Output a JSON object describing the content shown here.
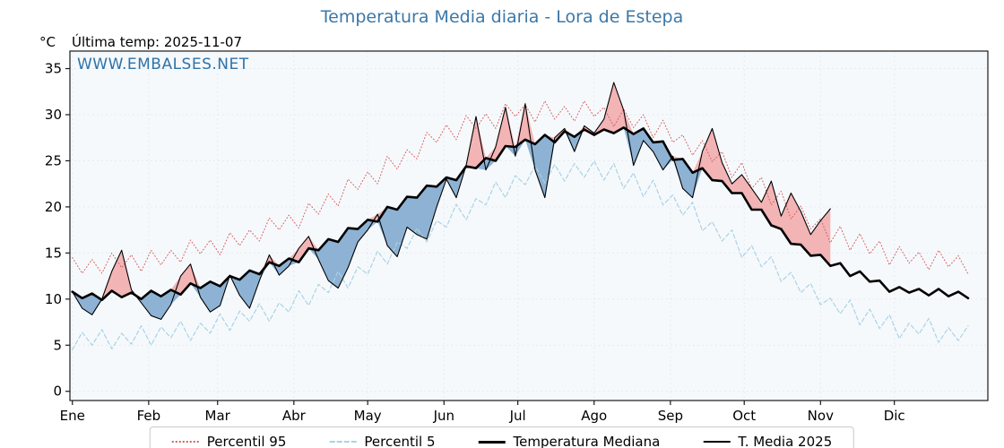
{
  "header": {
    "title": "Temperatura Media diaria - Lora de Estepa",
    "unit": "°C",
    "last_temp": "Última temp: 2025-11-07",
    "watermark": "WWW.EMBALSES.NET"
  },
  "colors": {
    "accent_blue": "#3c78a8",
    "watermark_blue": "#2f72a8",
    "p95_red": "#d65f5f",
    "p5_blue": "#a9d3e5",
    "median_black": "#000000",
    "t2025_black": "#000000",
    "fill_above": "#f2a8a8",
    "fill_below": "#7aa6cc",
    "plot_bg": "#f6f9fc",
    "grid": "#e3ebf2",
    "spine": "#1a1a1a"
  },
  "legend": {
    "items": [
      {
        "label": "Percentil 95"
      },
      {
        "label": "Percentil 5"
      },
      {
        "label": "Temperatura Mediana"
      },
      {
        "label": "T. Media 2025"
      }
    ]
  },
  "chart_data": {
    "type": "line",
    "title": "Temperatura Media diaria - Lora de Estepa",
    "xlabel": "",
    "ylabel": "°C",
    "xlim": [
      0,
      373
    ],
    "ylim": [
      -1.0,
      36.9
    ],
    "grid": true,
    "legend_position": "bottom-center",
    "y_ticks": [
      0,
      5,
      10,
      15,
      20,
      25,
      30,
      35
    ],
    "x_months": [
      {
        "label": "Ene",
        "day": 1
      },
      {
        "label": "Feb",
        "day": 32
      },
      {
        "label": "Mar",
        "day": 60
      },
      {
        "label": "Abr",
        "day": 91
      },
      {
        "label": "May",
        "day": 121
      },
      {
        "label": "Jun",
        "day": 152
      },
      {
        "label": "Jul",
        "day": 182
      },
      {
        "label": "Ago",
        "day": 213
      },
      {
        "label": "Sep",
        "day": 244
      },
      {
        "label": "Oct",
        "day": 274
      },
      {
        "label": "Nov",
        "day": 305
      },
      {
        "label": "Dic",
        "day": 335
      }
    ],
    "days": [
      1,
      5,
      9,
      13,
      17,
      21,
      25,
      29,
      33,
      37,
      41,
      45,
      49,
      53,
      57,
      61,
      65,
      69,
      73,
      77,
      81,
      85,
      89,
      93,
      97,
      101,
      105,
      109,
      113,
      117,
      121,
      125,
      129,
      133,
      137,
      141,
      145,
      149,
      153,
      157,
      161,
      165,
      169,
      173,
      177,
      181,
      185,
      189,
      193,
      197,
      201,
      205,
      209,
      213,
      217,
      221,
      225,
      229,
      233,
      237,
      241,
      245,
      249,
      253,
      257,
      261,
      265,
      269,
      273,
      277,
      281,
      285,
      289,
      293,
      297,
      301,
      305,
      309,
      313,
      317,
      321,
      325,
      329,
      333,
      337,
      341,
      345,
      349,
      353,
      357,
      361,
      365
    ],
    "days_2025": [
      1,
      5,
      9,
      13,
      17,
      21,
      25,
      29,
      33,
      37,
      41,
      45,
      49,
      53,
      57,
      61,
      65,
      69,
      73,
      77,
      81,
      85,
      89,
      93,
      97,
      101,
      105,
      109,
      113,
      117,
      121,
      125,
      129,
      133,
      137,
      141,
      145,
      149,
      153,
      157,
      161,
      165,
      169,
      173,
      177,
      181,
      185,
      189,
      193,
      197,
      201,
      205,
      209,
      213,
      217,
      221,
      225,
      229,
      233,
      237,
      241,
      245,
      249,
      253,
      257,
      261,
      265,
      269,
      273,
      277,
      281,
      285,
      289,
      293,
      297,
      301,
      305,
      309
    ],
    "series": [
      {
        "name": "Percentil 95",
        "style": "dotted",
        "color": "#d65f5f",
        "width": 1.0,
        "days_key": "days",
        "values": [
          14.5,
          12.8,
          14.3,
          12.8,
          15.0,
          13.4,
          14.8,
          13.0,
          15.3,
          13.7,
          15.3,
          14.0,
          16.4,
          14.9,
          16.4,
          14.8,
          17.2,
          15.8,
          17.5,
          16.3,
          18.8,
          17.5,
          19.1,
          17.7,
          20.4,
          19.2,
          21.4,
          20.1,
          23.0,
          21.9,
          23.8,
          22.5,
          25.5,
          24.1,
          26.2,
          25.2,
          28.1,
          27.0,
          28.9,
          27.3,
          29.9,
          28.5,
          30.1,
          28.5,
          31.2,
          29.8,
          31.1,
          29.2,
          31.5,
          29.5,
          30.9,
          29.3,
          31.5,
          29.8,
          30.8,
          28.7,
          30.6,
          28.6,
          30.0,
          27.5,
          29.4,
          27.0,
          27.8,
          25.6,
          27.2,
          24.9,
          26.0,
          23.2,
          24.8,
          22.0,
          23.2,
          20.2,
          21.7,
          18.7,
          20.1,
          17.6,
          18.7,
          16.1,
          17.9,
          15.3,
          17.1,
          14.9,
          16.3,
          13.7,
          15.7,
          13.9,
          15.1,
          13.2,
          15.3,
          13.5,
          14.7,
          12.7
        ]
      },
      {
        "name": "Percentil 5",
        "style": "dashed",
        "color": "#a9d3e5",
        "width": 1.2,
        "days_key": "days",
        "values": [
          4.5,
          6.4,
          5.0,
          6.7,
          4.6,
          6.3,
          5.1,
          7.1,
          5.0,
          7.0,
          5.8,
          7.6,
          5.5,
          7.4,
          6.3,
          8.4,
          6.6,
          8.7,
          7.6,
          9.5,
          7.6,
          9.6,
          8.6,
          10.9,
          9.3,
          11.6,
          10.7,
          13.0,
          11.2,
          13.5,
          12.7,
          15.2,
          13.8,
          16.2,
          15.5,
          17.7,
          16.2,
          18.5,
          17.8,
          20.3,
          18.6,
          20.9,
          20.2,
          22.7,
          21.0,
          23.4,
          22.4,
          24.5,
          22.6,
          24.6,
          22.8,
          24.7,
          23.2,
          25.0,
          22.9,
          24.7,
          22.0,
          23.7,
          21.1,
          22.9,
          20.2,
          21.3,
          19.1,
          20.5,
          17.4,
          18.4,
          16.3,
          17.5,
          14.5,
          15.8,
          13.5,
          14.6,
          11.9,
          12.9,
          10.7,
          11.7,
          9.4,
          10.1,
          8.4,
          9.9,
          7.2,
          8.9,
          6.8,
          8.3,
          5.7,
          7.4,
          6.2,
          7.9,
          5.3,
          6.9,
          5.5,
          7.1
        ]
      },
      {
        "name": "Temperatura Mediana",
        "style": "solid",
        "color": "#000000",
        "width": 2.6,
        "days_key": "days",
        "values": [
          10.8,
          10.1,
          10.6,
          9.9,
          10.9,
          10.2,
          10.7,
          10.0,
          10.9,
          10.3,
          11.0,
          10.5,
          11.7,
          11.2,
          11.9,
          11.4,
          12.5,
          12.1,
          13.1,
          12.7,
          14.0,
          13.6,
          14.4,
          14.0,
          15.5,
          15.3,
          16.5,
          16.2,
          17.7,
          17.6,
          18.6,
          18.4,
          20.0,
          19.7,
          21.1,
          21.0,
          22.3,
          22.2,
          23.2,
          22.9,
          24.4,
          24.2,
          25.3,
          25.0,
          26.6,
          26.5,
          27.3,
          26.8,
          27.8,
          27.0,
          28.2,
          27.6,
          28.4,
          27.8,
          28.4,
          28.0,
          28.6,
          27.9,
          28.5,
          27.0,
          27.1,
          25.1,
          25.2,
          23.7,
          24.2,
          22.9,
          22.8,
          21.5,
          21.5,
          19.7,
          19.7,
          18.0,
          17.6,
          16.0,
          15.9,
          14.7,
          14.8,
          13.6,
          13.9,
          12.5,
          13.0,
          11.9,
          12.0,
          10.8,
          11.3,
          10.7,
          11.1,
          10.4,
          11.1,
          10.3,
          10.8,
          10.1
        ]
      },
      {
        "name": "T. Media 2025",
        "style": "solid",
        "color": "#000000",
        "width": 1.1,
        "days_key": "days_2025",
        "values": [
          10.8,
          9.0,
          8.3,
          10.0,
          13.0,
          15.3,
          11.0,
          9.6,
          8.2,
          7.8,
          9.4,
          12.5,
          13.8,
          10.2,
          8.6,
          9.3,
          12.6,
          10.4,
          9.0,
          12.0,
          14.8,
          12.6,
          13.6,
          15.5,
          16.8,
          14.3,
          12.0,
          11.2,
          13.4,
          16.2,
          17.5,
          19.2,
          15.8,
          14.6,
          17.8,
          17.0,
          16.5,
          20.0,
          23.0,
          21.0,
          24.5,
          29.8,
          24.0,
          26.5,
          30.8,
          25.5,
          31.2,
          24.0,
          21.0,
          27.5,
          28.5,
          26.0,
          28.8,
          28.0,
          29.5,
          33.5,
          30.5,
          24.5,
          27.2,
          26.0,
          24.0,
          25.5,
          22.0,
          21.0,
          26.0,
          28.5,
          24.8,
          22.5,
          23.5,
          22.0,
          20.5,
          22.8,
          19.0,
          21.5,
          19.5,
          17.0,
          18.5,
          19.8
        ]
      }
    ],
    "fills": {
      "above_color": "#f2a8a8",
      "above_opacity": 0.85,
      "below_color": "#7aa6cc",
      "below_opacity": 0.85,
      "between": [
        "T. Media 2025",
        "Temperatura Mediana"
      ]
    }
  }
}
